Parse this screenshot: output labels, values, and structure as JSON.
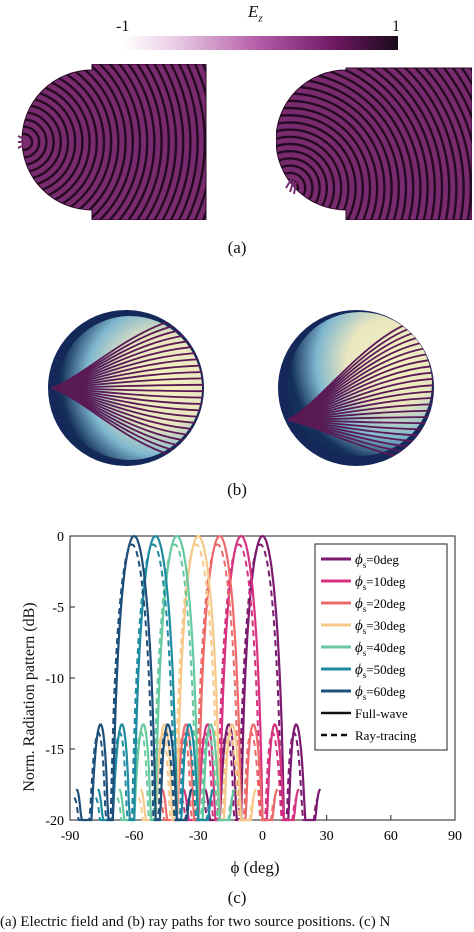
{
  "colorbar": {
    "label": "E",
    "label_sub": "z",
    "min_label": "-1",
    "max_label": "1",
    "color_start": "#ffffff",
    "color_mid": "#8a1f7a",
    "color_end": "#1a0a1a"
  },
  "captions": {
    "a": "(a)",
    "b": "(b)",
    "c": "(c)"
  },
  "footer_text": "(a) Electric field and (b) ray paths for two source positions. (c) N",
  "chart_data": {
    "type": "line",
    "xlabel": "ϕ (deg)",
    "ylabel": "Norm. Radiation pattern (dB)",
    "xlim": [
      -90,
      90
    ],
    "ylim": [
      -20,
      0
    ],
    "xticks": [
      -90,
      -60,
      -30,
      0,
      30,
      60,
      90
    ],
    "xtick_labels": [
      "-90",
      "-60",
      "-30",
      "0",
      "30",
      "60",
      "90"
    ],
    "yticks": [
      0,
      -5,
      -10,
      -15,
      -20
    ],
    "ytick_labels": [
      "0",
      "-5",
      "-10",
      "-15",
      "-20"
    ],
    "grid": false,
    "legend_position": "top-right",
    "series": [
      {
        "name": "ϕs=0deg",
        "name_main": "ϕ",
        "name_sub": "s",
        "name_rest": "=0deg",
        "color": "#7b1a6e",
        "peak": 0
      },
      {
        "name": "ϕs=10deg",
        "name_main": "ϕ",
        "name_sub": "s",
        "name_rest": "=10deg",
        "color": "#d6327f",
        "peak": -10
      },
      {
        "name": "ϕs=20deg",
        "name_main": "ϕ",
        "name_sub": "s",
        "name_rest": "=20deg",
        "color": "#ec6a6a",
        "peak": -20
      },
      {
        "name": "ϕs=30deg",
        "name_main": "ϕ",
        "name_sub": "s",
        "name_rest": "=30deg",
        "color": "#f6c98a",
        "peak": -30
      },
      {
        "name": "ϕs=40deg",
        "name_main": "ϕ",
        "name_sub": "s",
        "name_rest": "=40deg",
        "color": "#66c9a0",
        "peak": -40
      },
      {
        "name": "ϕs=50deg",
        "name_main": "ϕ",
        "name_sub": "s",
        "name_rest": "=50deg",
        "color": "#1f8ba0",
        "peak": -50
      },
      {
        "name": "ϕs=60deg",
        "name_main": "ϕ",
        "name_sub": "s",
        "name_rest": "=60deg",
        "color": "#1d4f7a",
        "peak": -60
      }
    ],
    "line_styles": [
      {
        "name": "Full-wave",
        "style": "solid"
      },
      {
        "name": "Ray-tracing",
        "style": "dashed"
      }
    ]
  }
}
